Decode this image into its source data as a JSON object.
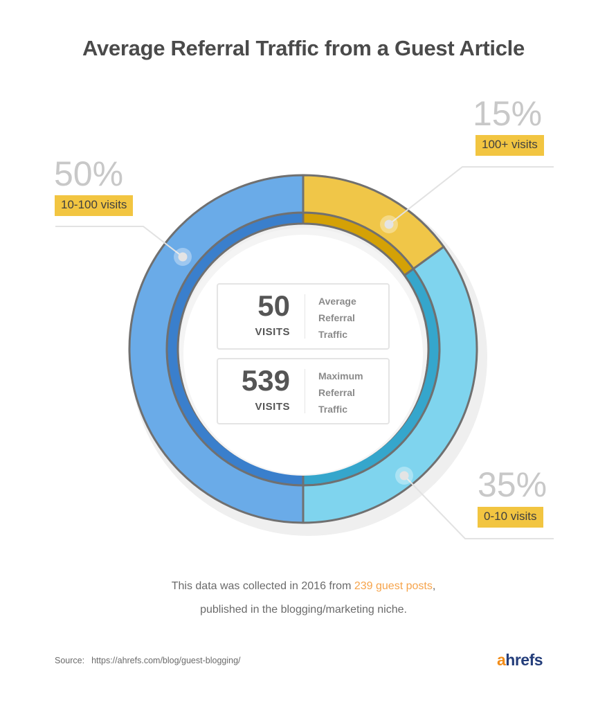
{
  "title": "Average Referral Traffic from a Guest Article",
  "segments": [
    {
      "percent": "15%",
      "label": "100+ visits",
      "color": "#f0c648",
      "inner_color": "#d4a106"
    },
    {
      "percent": "35%",
      "label": "0-10 visits",
      "color": "#7fd4ee",
      "inner_color": "#35a6cc"
    },
    {
      "percent": "50%",
      "label": "10-100 visits",
      "color": "#6aabe8",
      "inner_color": "#3a7fcc"
    }
  ],
  "center_cards": [
    {
      "number": "50",
      "unit": "VISITS",
      "desc": [
        "Average",
        "Referral",
        "Traffic"
      ]
    },
    {
      "number": "539",
      "unit": "VISITS",
      "desc": [
        "Maximum",
        "Referral",
        "Traffic"
      ]
    }
  ],
  "note": {
    "line1_prefix": "This data was collected in 2016 from ",
    "line1_highlight": "239 guest posts",
    "line1_suffix": ",",
    "line2": "published in the blogging/marketing niche."
  },
  "source": {
    "label": "Source:",
    "url": "https://ahrefs.com/blog/guest-blogging/"
  },
  "logo": {
    "first": "a",
    "rest": "hrefs"
  },
  "colors": {
    "highlight": "#f2c541",
    "accent_orange": "#f6a34a",
    "logo_blue": "#233d7a",
    "logo_orange": "#f28d1a"
  },
  "chart_data": {
    "type": "pie",
    "title": "Average Referral Traffic from a Guest Article",
    "categories": [
      "100+ visits",
      "0-10 visits",
      "10-100 visits"
    ],
    "values": [
      15,
      35,
      50
    ],
    "unit": "%",
    "donut": true,
    "annotations": [
      {
        "text": "50 VISITS Average Referral Traffic"
      },
      {
        "text": "539 VISITS Maximum Referral Traffic"
      },
      {
        "text": "This data was collected in 2016 from 239 guest posts, published in the blogging/marketing niche."
      }
    ],
    "legend": "callout labels"
  }
}
